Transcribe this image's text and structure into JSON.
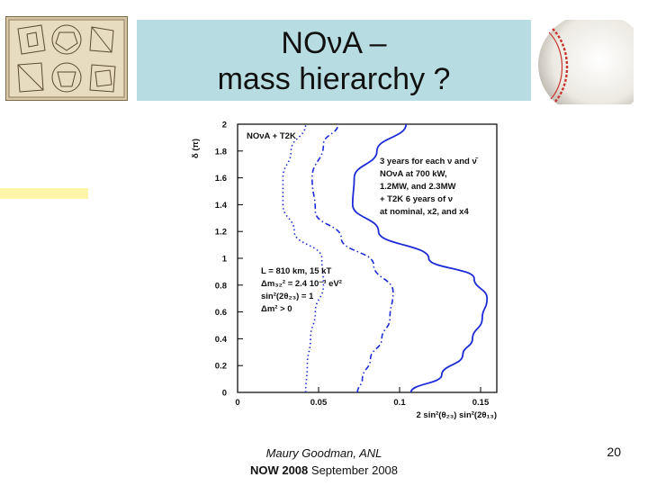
{
  "slide": {
    "title_line1": "NOνA –",
    "title_line2": "mass hierarchy ?",
    "footer_author": "Maury Goodman, ANL",
    "footer_conf_bold": "NOW 2008",
    "footer_conf_rest": " September 2008",
    "page_number": "20",
    "left_image": "polyhedra-engraving-image",
    "right_image": "baseball-image",
    "colors": {
      "title_bg": "#b7dde3",
      "curve": "#1c2bd6",
      "left_bar": "#fff5a8"
    }
  },
  "chart_data": {
    "type": "line",
    "xlabel": "2 sin²(θ₂₃) sin²(2θ₁₃)",
    "ylabel": "δ (π)",
    "xlim": [
      0,
      0.16
    ],
    "ylim": [
      0,
      2
    ],
    "x_ticks": [
      0,
      0.05,
      0.1,
      0.15
    ],
    "x_tick_labels": [
      "0",
      "0.05",
      "0.1",
      "0.15"
    ],
    "y_ticks": [
      0,
      0.2,
      0.4,
      0.6,
      0.8,
      1,
      1.2,
      1.4,
      1.6,
      1.8,
      2
    ],
    "y_tick_labels": [
      "0",
      "0.2",
      "0.4",
      "0.6",
      "0.8",
      "1",
      "1.2",
      "1.4",
      "1.6",
      "1.8",
      "2"
    ],
    "legend_label": "NOνA + T2K",
    "annotation_top": [
      "3 years for each ν and ν̄",
      "NOνA at 700 kW,",
      "1.2MW, and 2.3MW",
      "+ T2K 6 years of ν",
      "at nominal, x2, and x4"
    ],
    "annotation_mid": [
      "L = 810 km, 15 kT",
      "Δm₃₂² = 2.4 10⁻³ eV²",
      "sin²(2θ₂₃) = 1",
      "Δm² > 0"
    ],
    "series": [
      {
        "style": "dotted",
        "points": [
          [
            0.042,
            0
          ],
          [
            0.043,
            0.2
          ],
          [
            0.045,
            0.4
          ],
          [
            0.048,
            0.6
          ],
          [
            0.053,
            0.8
          ],
          [
            0.052,
            1.0
          ],
          [
            0.035,
            1.2
          ],
          [
            0.028,
            1.4
          ],
          [
            0.028,
            1.6
          ],
          [
            0.033,
            1.8
          ],
          [
            0.042,
            2.0
          ]
        ]
      },
      {
        "style": "dashdot",
        "points": [
          [
            0.074,
            0
          ],
          [
            0.077,
            0.1
          ],
          [
            0.082,
            0.25
          ],
          [
            0.089,
            0.4
          ],
          [
            0.094,
            0.55
          ],
          [
            0.096,
            0.75
          ],
          [
            0.084,
            0.95
          ],
          [
            0.064,
            1.15
          ],
          [
            0.048,
            1.35
          ],
          [
            0.046,
            1.6
          ],
          [
            0.053,
            1.85
          ],
          [
            0.062,
            2.0
          ]
        ]
      },
      {
        "style": "solid",
        "points": [
          [
            0.107,
            0
          ],
          [
            0.126,
            0.13
          ],
          [
            0.139,
            0.28
          ],
          [
            0.145,
            0.4
          ],
          [
            0.151,
            0.55
          ],
          [
            0.154,
            0.7
          ],
          [
            0.146,
            0.85
          ],
          [
            0.118,
            1.0
          ],
          [
            0.087,
            1.2
          ],
          [
            0.071,
            1.4
          ],
          [
            0.072,
            1.6
          ],
          [
            0.086,
            1.8
          ],
          [
            0.104,
            2.0
          ]
        ]
      }
    ]
  }
}
